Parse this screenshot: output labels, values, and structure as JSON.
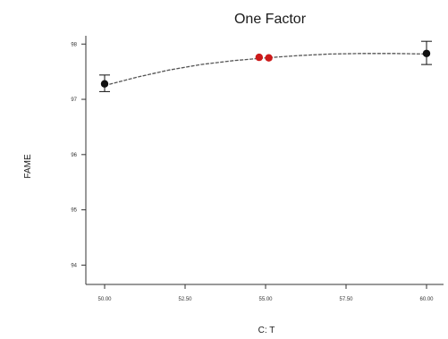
{
  "chart_data": {
    "type": "line",
    "title": "One Factor",
    "xlabel": "C: T",
    "ylabel": "FAME",
    "x_ticks": [
      50.0,
      52.5,
      55.0,
      57.5,
      60.0
    ],
    "x_tick_labels": [
      "50.00",
      "52.50",
      "55.00",
      "57.50",
      "60.00"
    ],
    "y_ticks": [
      94,
      95,
      96,
      97,
      98
    ],
    "y_tick_labels": [
      "94",
      "95",
      "96",
      "97",
      "98"
    ],
    "xlim": [
      50,
      60
    ],
    "ylim": [
      93.65,
      98.15
    ],
    "grid": false,
    "fit_curve": {
      "x": [
        50,
        51,
        52,
        53,
        54,
        55,
        56,
        57,
        58,
        59,
        60
      ],
      "y": [
        97.25,
        97.4,
        97.53,
        97.63,
        97.7,
        97.75,
        97.79,
        97.82,
        97.83,
        97.83,
        97.82
      ]
    },
    "design_points": [
      {
        "x": 50,
        "y": 97.28,
        "color": "#111111",
        "err_low": 97.14,
        "err_high": 97.44
      },
      {
        "x": 54.8,
        "y": 97.76,
        "color": "#cc1a1a"
      },
      {
        "x": 55.1,
        "y": 97.75,
        "color": "#cc1a1a"
      },
      {
        "x": 60,
        "y": 97.83,
        "color": "#111111",
        "err_low": 97.63,
        "err_high": 98.05
      }
    ],
    "colors": {
      "curve": "#555555",
      "axis": "#333333",
      "design_point": "#111111",
      "center_point": "#cc1a1a"
    }
  }
}
